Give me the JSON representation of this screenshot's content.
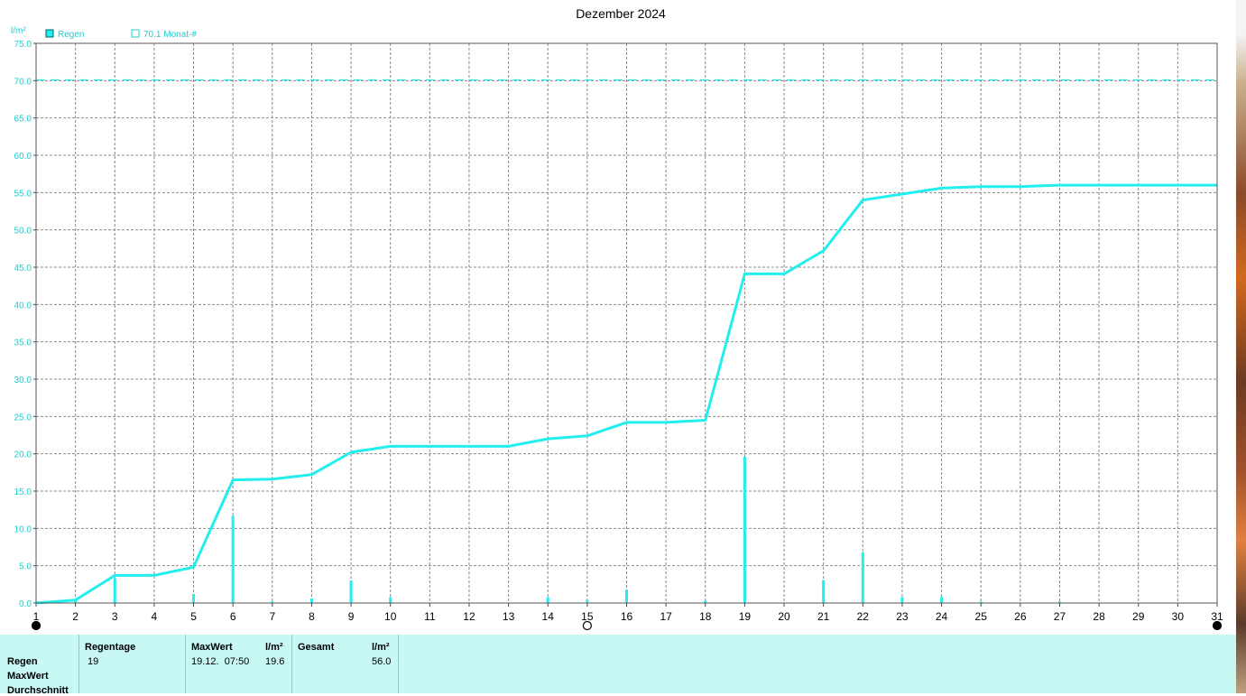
{
  "chart_data": {
    "type": "bar+line",
    "title": "Dezember 2024",
    "ylabel": "l/m²",
    "ylim": [
      0,
      75
    ],
    "y_ticks": [
      "0.0",
      "5.0",
      "10.0",
      "15.0",
      "20.0",
      "25.0",
      "30.0",
      "35.0",
      "40.0",
      "45.0",
      "50.0",
      "55.0",
      "60.0",
      "65.0",
      "70.0",
      "75.0"
    ],
    "x_ticks": [
      "1",
      "2",
      "3",
      "4",
      "5",
      "6",
      "7",
      "8",
      "9",
      "10",
      "11",
      "12",
      "13",
      "14",
      "15",
      "16",
      "17",
      "18",
      "19",
      "20",
      "21",
      "22",
      "23",
      "24",
      "25",
      "26",
      "27",
      "28",
      "29",
      "30",
      "31"
    ],
    "grid": true,
    "legend": [
      {
        "label": "Regen",
        "marker": "filled-square"
      },
      {
        "label": "70.1 Monat-#",
        "marker": "open-square"
      }
    ],
    "reference_line": {
      "value": 70.1,
      "style": "dashed"
    },
    "color": "#22eeee",
    "series": [
      {
        "name": "Regen",
        "kind": "bar",
        "x": [
          1,
          2,
          3,
          5,
          6,
          7,
          8,
          9,
          10,
          14,
          15,
          16,
          18,
          19,
          21,
          22,
          23,
          24,
          25,
          27
        ],
        "values": [
          0.2,
          0.3,
          3.3,
          1.2,
          11.7,
          0.2,
          0.6,
          3.0,
          0.8,
          0.8,
          0.4,
          1.8,
          0.3,
          19.6,
          3.1,
          6.8,
          0.8,
          0.8,
          0.2,
          0.2
        ]
      },
      {
        "kind": "line",
        "x": [
          1,
          2,
          3,
          4,
          5,
          6,
          7,
          8,
          9,
          10,
          11,
          12,
          13,
          14,
          15,
          16,
          17,
          18,
          19,
          20,
          21,
          22,
          23,
          24,
          25,
          26,
          27,
          28,
          29,
          30,
          31
        ],
        "values": [
          0.0,
          0.4,
          3.7,
          3.7,
          4.8,
          16.5,
          16.6,
          17.2,
          20.2,
          21.0,
          21.0,
          21.0,
          21.0,
          22.0,
          22.4,
          24.2,
          24.2,
          24.5,
          44.1,
          44.1,
          47.2,
          54.0,
          54.8,
          55.6,
          55.8,
          55.8,
          56.0,
          56.0,
          56.0,
          56.0,
          56.0
        ]
      }
    ],
    "moon_phases": [
      {
        "day": 1,
        "phase": "new"
      },
      {
        "day": 15,
        "phase": "full"
      },
      {
        "day": 31,
        "phase": "new"
      }
    ]
  },
  "stats": {
    "row_labels": [
      "Regen",
      "MaxWert",
      "Durchschnitt"
    ],
    "regentage": {
      "header": "Regentage",
      "value": "19"
    },
    "maxwert": {
      "header": "MaxWert",
      "unit": "l/m²",
      "date": "19.12.  07:50",
      "value": "19.6"
    },
    "gesamt": {
      "header": "Gesamt",
      "unit": "l/m²",
      "value": "56.0"
    }
  }
}
